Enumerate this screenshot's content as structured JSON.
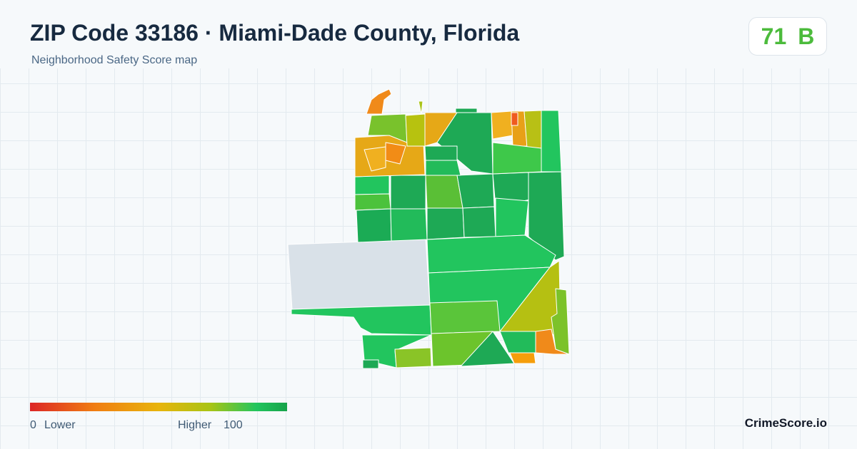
{
  "header": {
    "title": "ZIP Code 33186 · Miami-Dade County, Florida",
    "subtitle": "Neighborhood Safety Score map"
  },
  "score": {
    "value": 71,
    "grade": "B"
  },
  "legend": {
    "min": 0,
    "low_label": "Lower",
    "high_label": "Higher",
    "max": 100
  },
  "brand": "CrimeScore.io"
}
